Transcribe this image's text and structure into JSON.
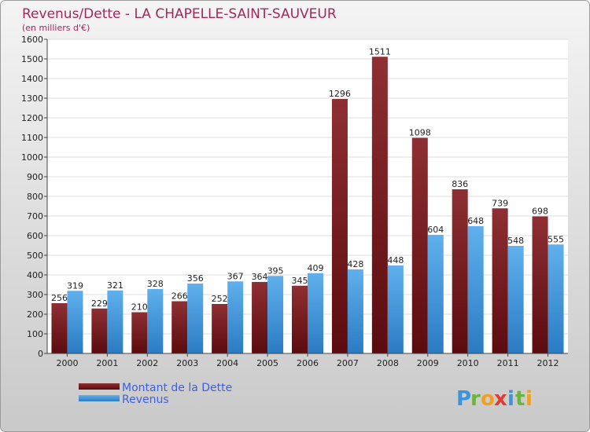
{
  "chart_data": {
    "type": "bar",
    "title": "Revenus/Dette - LA CHAPELLE-SAINT-SAUVEUR",
    "subtitle": "(en milliers d'€)",
    "categories": [
      "2000",
      "2001",
      "2002",
      "2003",
      "2004",
      "2005",
      "2006",
      "2007",
      "2008",
      "2009",
      "2010",
      "2011",
      "2012"
    ],
    "series": [
      {
        "name": "Montant de la Dette",
        "color": "#7a1c1f",
        "values": [
          256,
          229,
          210,
          266,
          252,
          364,
          345,
          1296,
          1511,
          1098,
          836,
          739,
          698
        ]
      },
      {
        "name": "Revenus",
        "color": "#3d93dc",
        "values": [
          319,
          321,
          328,
          356,
          367,
          395,
          409,
          428,
          448,
          604,
          648,
          548,
          555
        ]
      }
    ],
    "ylim": [
      0,
      1600
    ],
    "yticks": [
      0,
      100,
      200,
      300,
      400,
      500,
      600,
      700,
      800,
      900,
      1000,
      1100,
      1200,
      1300,
      1400,
      1500,
      1600
    ],
    "grid": true,
    "legend_position": "bottom-left"
  },
  "colors": {
    "background": "#dcdcdc",
    "title": "#a3285a",
    "legend_text": "#3d5fe0"
  },
  "logo": {
    "text": "Proxiti"
  }
}
